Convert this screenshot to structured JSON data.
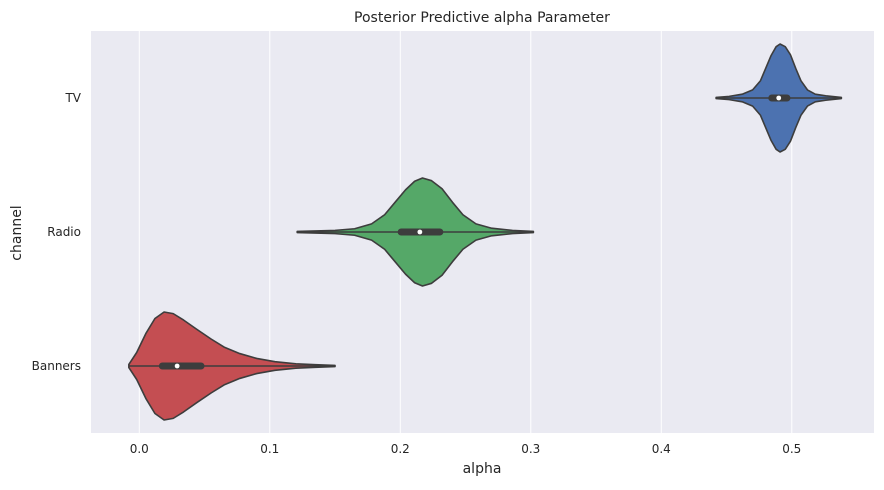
{
  "chart_data": {
    "type": "violin",
    "orientation": "horizontal",
    "title": "Posterior Predictive alpha Parameter",
    "xlabel": "alpha",
    "ylabel": "channel",
    "xlim": [
      -0.037,
      0.563
    ],
    "xticks": [
      0.0,
      0.1,
      0.2,
      0.3,
      0.4,
      0.5
    ],
    "x_tick_labels": [
      "0.0",
      "0.1",
      "0.2",
      "0.3",
      "0.4",
      "0.5"
    ],
    "categories": [
      "TV",
      "Radio",
      "Banners"
    ],
    "grid": "vertical",
    "legend": "none",
    "series": [
      {
        "category": "TV",
        "color": "#4c72b0",
        "min": 0.442,
        "q1": 0.482,
        "median": 0.49,
        "q3": 0.499,
        "max": 0.538,
        "density": [
          [
            0.442,
            0.01
          ],
          [
            0.452,
            0.03
          ],
          [
            0.462,
            0.07
          ],
          [
            0.47,
            0.15
          ],
          [
            0.476,
            0.32
          ],
          [
            0.48,
            0.55
          ],
          [
            0.484,
            0.78
          ],
          [
            0.488,
            0.95
          ],
          [
            0.491,
            1.0
          ],
          [
            0.495,
            0.95
          ],
          [
            0.499,
            0.8
          ],
          [
            0.503,
            0.55
          ],
          [
            0.507,
            0.32
          ],
          [
            0.512,
            0.15
          ],
          [
            0.518,
            0.07
          ],
          [
            0.526,
            0.04
          ],
          [
            0.538,
            0.01
          ]
        ]
      },
      {
        "category": "Radio",
        "color": "#55a868",
        "min": 0.121,
        "q1": 0.198,
        "median": 0.215,
        "q3": 0.233,
        "max": 0.302,
        "density": [
          [
            0.121,
            0.01
          ],
          [
            0.15,
            0.03
          ],
          [
            0.165,
            0.06
          ],
          [
            0.178,
            0.15
          ],
          [
            0.188,
            0.32
          ],
          [
            0.196,
            0.55
          ],
          [
            0.204,
            0.78
          ],
          [
            0.211,
            0.94
          ],
          [
            0.217,
            1.0
          ],
          [
            0.224,
            0.95
          ],
          [
            0.232,
            0.8
          ],
          [
            0.24,
            0.55
          ],
          [
            0.248,
            0.32
          ],
          [
            0.258,
            0.15
          ],
          [
            0.27,
            0.07
          ],
          [
            0.286,
            0.03
          ],
          [
            0.302,
            0.01
          ]
        ]
      },
      {
        "category": "Banners",
        "color": "#c44e52",
        "min": -0.008,
        "q1": 0.015,
        "median": 0.029,
        "q3": 0.05,
        "max": 0.15,
        "density": [
          [
            -0.008,
            0.03
          ],
          [
            -0.002,
            0.25
          ],
          [
            0.005,
            0.6
          ],
          [
            0.012,
            0.88
          ],
          [
            0.019,
            1.0
          ],
          [
            0.026,
            0.97
          ],
          [
            0.034,
            0.85
          ],
          [
            0.044,
            0.68
          ],
          [
            0.055,
            0.5
          ],
          [
            0.065,
            0.35
          ],
          [
            0.077,
            0.23
          ],
          [
            0.09,
            0.14
          ],
          [
            0.104,
            0.08
          ],
          [
            0.12,
            0.04
          ],
          [
            0.135,
            0.025
          ],
          [
            0.15,
            0.01
          ]
        ]
      }
    ]
  }
}
